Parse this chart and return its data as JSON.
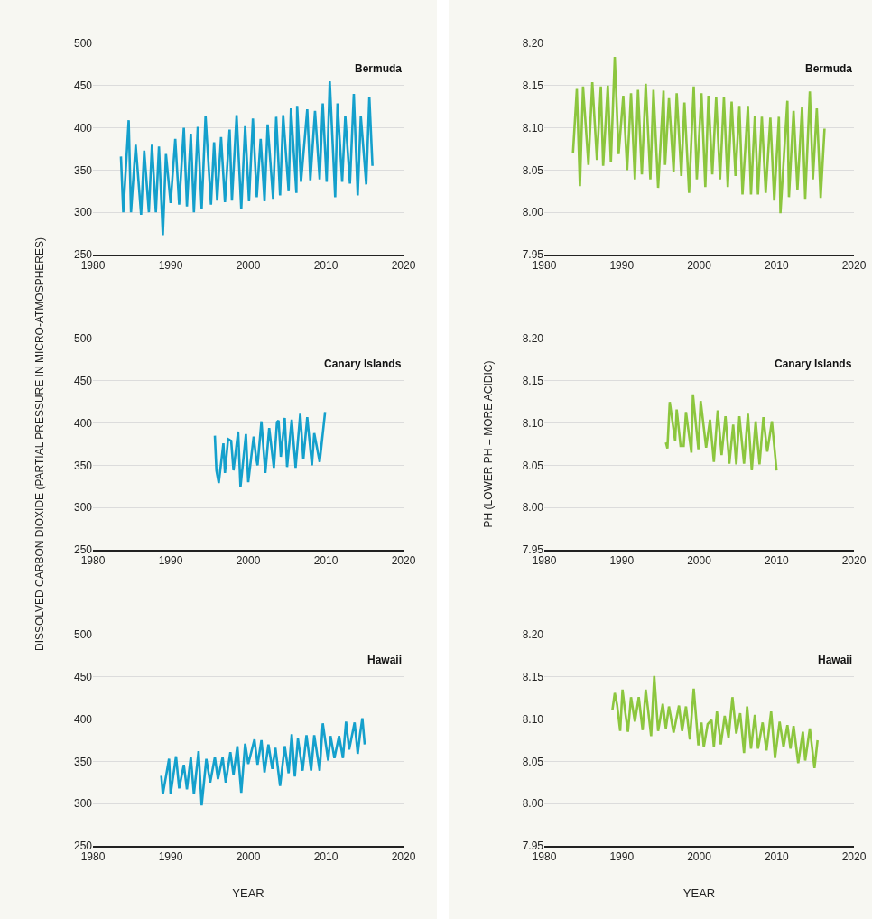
{
  "chart_data": [
    {
      "type": "line",
      "title": "Bermuda",
      "xlim": [
        1980,
        2020
      ],
      "xticks": [
        1980,
        1990,
        2000,
        2010,
        2020
      ],
      "ylim": [
        250,
        500
      ],
      "yticks": [
        250,
        300,
        350,
        400,
        450,
        500
      ],
      "grid": "y",
      "series": [
        {
          "color": "#14a0cc",
          "x": [
            1983.6,
            1983.9,
            1984.6,
            1984.9,
            1985.5,
            1986.2,
            1986.6,
            1987.2,
            1987.6,
            1988.1,
            1988.5,
            1989.0,
            1989.4,
            1990.0,
            1990.6,
            1991.1,
            1991.7,
            1992.1,
            1992.6,
            1993.0,
            1993.5,
            1994.0,
            1994.5,
            1995.2,
            1995.6,
            1996.0,
            1996.5,
            1997.0,
            1997.6,
            1997.9,
            1998.5,
            1999.1,
            1999.6,
            2000.1,
            2000.6,
            2001.1,
            2001.6,
            2002.1,
            2002.5,
            2003.2,
            2003.6,
            2004.1,
            2004.5,
            2005.2,
            2005.5,
            2006.2,
            2006.3,
            2006.8,
            2007.6,
            2008.0,
            2008.6,
            2009.2,
            2009.6,
            2010.1,
            2010.5,
            2011.2,
            2011.5,
            2012.1,
            2012.5,
            2013.1,
            2013.6,
            2014.1,
            2014.5,
            2015.2,
            2015.6,
            2016.0
          ],
          "values": [
            366,
            300,
            409,
            300,
            380,
            297,
            373,
            300,
            380,
            300,
            378,
            273,
            369,
            311,
            387,
            309,
            400,
            307,
            393,
            300,
            401,
            304,
            414,
            309,
            383,
            314,
            389,
            312,
            398,
            314,
            415,
            304,
            402,
            313,
            411,
            318,
            387,
            313,
            404,
            316,
            413,
            320,
            415,
            325,
            423,
            323,
            426,
            336,
            422,
            338,
            420,
            339,
            429,
            336,
            455,
            318,
            429,
            336,
            414,
            334,
            440,
            320,
            414,
            333,
            437,
            355
          ]
        }
      ]
    },
    {
      "type": "line",
      "title": "Bermuda",
      "xlim": [
        1980,
        2020
      ],
      "xticks": [
        1980,
        1990,
        2000,
        2010,
        2020
      ],
      "ylim": [
        7.95,
        8.2
      ],
      "yticks": [
        {
          "value": 7.95,
          "label": "7.95"
        },
        {
          "value": 8,
          "label": "8.00"
        },
        {
          "value": 8.05,
          "label": "8.05"
        },
        {
          "value": 8.1,
          "label": "8.10"
        },
        {
          "value": 8.15,
          "label": "8.15"
        },
        {
          "value": 8.2,
          "label": "8.20"
        }
      ],
      "grid": "y",
      "series": [
        {
          "color": "#8cc63e",
          "x": [
            1983.7,
            1984.2,
            1984.6,
            1985.0,
            1985.7,
            1986.2,
            1986.8,
            1987.3,
            1987.6,
            1988.2,
            1988.6,
            1989.1,
            1989.6,
            1990.2,
            1990.7,
            1991.2,
            1991.7,
            1992.1,
            1992.6,
            1993.1,
            1993.7,
            1994.1,
            1994.7,
            1995.4,
            1995.6,
            1996.1,
            1996.7,
            1997.1,
            1997.7,
            1998.1,
            1998.7,
            1999.3,
            1999.7,
            2000.3,
            2000.8,
            2001.2,
            2001.7,
            2002.2,
            2002.7,
            2003.2,
            2003.7,
            2004.2,
            2004.7,
            2005.2,
            2005.6,
            2006.3,
            2006.7,
            2007.2,
            2007.6,
            2008.1,
            2008.6,
            2009.2,
            2009.7,
            2010.3,
            2010.5,
            2011.4,
            2011.6,
            2012.2,
            2012.7,
            2013.3,
            2013.7,
            2014.3,
            2014.7,
            2015.2,
            2015.7,
            2016.2
          ],
          "values": [
            8.07,
            8.146,
            8.031,
            8.149,
            8.056,
            8.154,
            8.062,
            8.149,
            8.055,
            8.15,
            8.059,
            8.184,
            8.069,
            8.138,
            8.05,
            8.141,
            8.039,
            8.145,
            8.045,
            8.152,
            8.039,
            8.145,
            8.029,
            8.144,
            8.056,
            8.135,
            8.048,
            8.141,
            8.043,
            8.13,
            8.023,
            8.149,
            8.039,
            8.141,
            8.03,
            8.138,
            8.045,
            8.136,
            8.039,
            8.136,
            8.03,
            8.131,
            8.043,
            8.126,
            8.021,
            8.126,
            8.021,
            8.114,
            8.021,
            8.113,
            8.023,
            8.112,
            8.014,
            8.113,
            7.999,
            8.132,
            8.018,
            8.12,
            8.027,
            8.125,
            8.016,
            8.143,
            8.039,
            8.123,
            8.017,
            8.099
          ]
        }
      ]
    },
    {
      "type": "line",
      "title": "Canary Islands",
      "ylabel": "DISSOLVED CARBON DIOXIDE (PARTIAL PRESSURE IN MICRO-ATMOSPHERES)",
      "xlim": [
        1980,
        2020
      ],
      "xticks": [
        1980,
        1990,
        2000,
        2010,
        2020
      ],
      "ylim": [
        250,
        500
      ],
      "yticks": [
        250,
        300,
        350,
        400,
        450,
        500
      ],
      "grid": "y",
      "series": [
        {
          "color": "#14a0cc",
          "x": [
            1995.7,
            1995.9,
            1996.2,
            1996.8,
            1997.0,
            1997.4,
            1997.8,
            1998.1,
            1998.7,
            1999.0,
            1999.7,
            2000.0,
            2000.7,
            2001.0,
            2001.2,
            2001.7,
            2002.2,
            2002.7,
            2003.3,
            2003.7,
            2003.9,
            2004.2,
            2004.7,
            2005.0,
            2005.6,
            2006.1,
            2006.7,
            2007.1,
            2007.6,
            2008.2,
            2008.5,
            2009.2,
            2009.9
          ],
          "values": [
            385,
            344,
            329,
            376,
            341,
            381,
            379,
            344,
            390,
            324,
            387,
            330,
            384,
            360,
            350,
            402,
            341,
            394,
            347,
            401,
            403,
            360,
            406,
            348,
            404,
            347,
            411,
            357,
            407,
            350,
            388,
            354,
            413
          ]
        }
      ]
    },
    {
      "type": "line",
      "title": "Canary Islands",
      "ylabel": "PH (LOWER PH = MORE ACIDIC)",
      "xlim": [
        1980,
        2020
      ],
      "xticks": [
        1980,
        1990,
        2000,
        2010,
        2020
      ],
      "ylim": [
        7.95,
        8.2
      ],
      "yticks": [
        {
          "value": 7.95,
          "label": "7.95"
        },
        {
          "value": 8,
          "label": "8.00"
        },
        {
          "value": 8.05,
          "label": "8.05"
        },
        {
          "value": 8.1,
          "label": "8.10"
        },
        {
          "value": 8.15,
          "label": "8.15"
        },
        {
          "value": 8.2,
          "label": "8.20"
        }
      ],
      "grid": "y",
      "series": [
        {
          "color": "#8cc63e",
          "x": [
            1995.7,
            1995.9,
            1996.2,
            1996.9,
            1997.1,
            1997.6,
            1998.0,
            1998.3,
            1999.0,
            1999.2,
            1999.9,
            2000.2,
            2000.9,
            2001.4,
            2001.9,
            2002.4,
            2002.9,
            2003.4,
            2003.9,
            2004.4,
            2004.8,
            2005.2,
            2005.8,
            2006.3,
            2006.8,
            2007.3,
            2007.8,
            2008.3,
            2008.8,
            2009.4,
            2010.0
          ],
          "values": [
            8.077,
            8.07,
            8.125,
            8.079,
            8.116,
            8.073,
            8.073,
            8.113,
            8.065,
            8.134,
            8.069,
            8.126,
            8.071,
            8.104,
            8.054,
            8.115,
            8.062,
            8.108,
            8.052,
            8.098,
            8.051,
            8.108,
            8.052,
            8.111,
            8.044,
            8.102,
            8.051,
            8.107,
            8.066,
            8.102,
            8.044
          ]
        }
      ]
    },
    {
      "type": "line",
      "title": "Hawaii",
      "xlabel": "YEAR",
      "xlim": [
        1980,
        2020
      ],
      "xticks": [
        1980,
        1990,
        2000,
        2010,
        2020
      ],
      "ylim": [
        250,
        500
      ],
      "yticks": [
        250,
        300,
        350,
        400,
        450,
        500
      ],
      "grid": "y",
      "series": [
        {
          "color": "#14a0cc",
          "x": [
            1988.8,
            1989.0,
            1989.8,
            1990.0,
            1990.7,
            1991.1,
            1991.7,
            1992.1,
            1992.6,
            1993.0,
            1993.6,
            1994.0,
            1994.6,
            1995.1,
            1995.7,
            1996.1,
            1996.7,
            1997.1,
            1997.7,
            1998.1,
            1998.6,
            1999.1,
            1999.6,
            2000.0,
            2000.8,
            2001.2,
            2001.7,
            2002.1,
            2002.6,
            2003.1,
            2003.5,
            2004.1,
            2004.7,
            2005.2,
            2005.6,
            2006.0,
            2006.4,
            2007.0,
            2007.5,
            2008.1,
            2008.5,
            2009.2,
            2009.6,
            2010.3,
            2010.6,
            2011.1,
            2011.7,
            2012.2,
            2012.6,
            2013.0,
            2013.7,
            2014.1,
            2014.4,
            2014.7,
            2015.0
          ],
          "values": [
            333,
            311,
            353,
            311,
            356,
            318,
            346,
            317,
            355,
            311,
            362,
            298,
            353,
            325,
            355,
            329,
            355,
            325,
            361,
            334,
            368,
            313,
            371,
            347,
            376,
            346,
            375,
            337,
            370,
            341,
            366,
            321,
            368,
            336,
            382,
            332,
            377,
            339,
            381,
            339,
            381,
            339,
            395,
            351,
            380,
            354,
            380,
            354,
            397,
            364,
            396,
            359,
            382,
            401,
            370
          ]
        }
      ]
    },
    {
      "type": "line",
      "title": "Hawaii",
      "xlabel": "YEAR",
      "xlim": [
        1980,
        2020
      ],
      "xticks": [
        1980,
        1990,
        2000,
        2010,
        2020
      ],
      "ylim": [
        7.95,
        8.2
      ],
      "yticks": [
        {
          "value": 7.95,
          "label": "7.95"
        },
        {
          "value": 8,
          "label": "8.00"
        },
        {
          "value": 8.05,
          "label": "8.05"
        },
        {
          "value": 8.1,
          "label": "8.10"
        },
        {
          "value": 8.15,
          "label": "8.15"
        },
        {
          "value": 8.2,
          "label": "8.20"
        }
      ],
      "grid": "y",
      "series": [
        {
          "color": "#8cc63e",
          "x": [
            1988.8,
            1989.1,
            1989.4,
            1989.8,
            1990.1,
            1990.4,
            1990.8,
            1991.2,
            1991.7,
            1992.2,
            1992.7,
            1993.1,
            1993.8,
            1994.2,
            1994.7,
            1995.3,
            1995.7,
            1996.1,
            1996.7,
            1997.4,
            1997.8,
            1998.3,
            1998.8,
            1999.3,
            1999.9,
            2000.3,
            2000.6,
            2001.1,
            2001.6,
            2001.9,
            2002.3,
            2002.8,
            2003.3,
            2003.8,
            2004.3,
            2004.8,
            2005.3,
            2005.8,
            2006.2,
            2006.7,
            2007.2,
            2007.6,
            2008.2,
            2008.7,
            2009.3,
            2009.8,
            2010.4,
            2010.9,
            2011.4,
            2011.8,
            2012.2,
            2012.8,
            2013.4,
            2013.7,
            2014.3,
            2014.9,
            2015.3
          ],
          "values": [
            8.111,
            8.131,
            8.117,
            8.086,
            8.135,
            8.112,
            8.085,
            8.126,
            8.097,
            8.126,
            8.087,
            8.135,
            8.08,
            8.151,
            8.086,
            8.118,
            8.089,
            8.115,
            8.084,
            8.116,
            8.086,
            8.115,
            8.076,
            8.136,
            8.069,
            8.096,
            8.067,
            8.094,
            8.099,
            8.067,
            8.109,
            8.07,
            8.104,
            8.078,
            8.126,
            8.083,
            8.107,
            8.06,
            8.115,
            8.065,
            8.105,
            8.065,
            8.096,
            8.063,
            8.109,
            8.054,
            8.097,
            8.067,
            8.093,
            8.065,
            8.092,
            8.048,
            8.085,
            8.051,
            8.089,
            8.042,
            8.075
          ]
        }
      ]
    }
  ]
}
